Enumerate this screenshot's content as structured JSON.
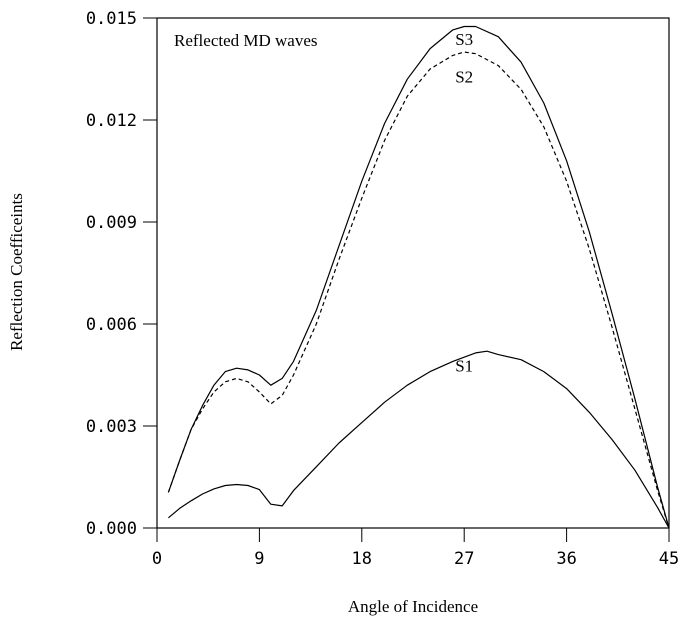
{
  "chart_data": {
    "type": "line",
    "annotation": "Reflected MD waves",
    "xlabel": "Angle of Incidence",
    "ylabel": "Reflection Coefficeints",
    "xlim": [
      0,
      45
    ],
    "ylim": [
      0,
      0.015
    ],
    "x_ticks": [
      "0",
      "9",
      "18",
      "27",
      "36",
      "45"
    ],
    "y_ticks": [
      "0.000",
      "0.003",
      "0.006",
      "0.009",
      "0.012",
      "0.015"
    ],
    "grid": false,
    "series": [
      {
        "name": "S3",
        "style": "solid",
        "points": [
          [
            1,
            0.00105
          ],
          [
            2,
            0.002
          ],
          [
            3,
            0.0029
          ],
          [
            4,
            0.0036
          ],
          [
            5,
            0.0042
          ],
          [
            6,
            0.0046
          ],
          [
            7,
            0.0047
          ],
          [
            8,
            0.00465
          ],
          [
            9,
            0.0045
          ],
          [
            10,
            0.0042
          ],
          [
            11,
            0.0044
          ],
          [
            12,
            0.0049
          ],
          [
            14,
            0.0064
          ],
          [
            16,
            0.0083
          ],
          [
            18,
            0.0102
          ],
          [
            20,
            0.0119
          ],
          [
            22,
            0.0132
          ],
          [
            24,
            0.0141
          ],
          [
            26,
            0.01465
          ],
          [
            27,
            0.01475
          ],
          [
            28,
            0.01475
          ],
          [
            30,
            0.01445
          ],
          [
            32,
            0.0137
          ],
          [
            34,
            0.0125
          ],
          [
            36,
            0.0108
          ],
          [
            38,
            0.0087
          ],
          [
            40,
            0.0063
          ],
          [
            42,
            0.0038
          ],
          [
            44,
            0.0012
          ],
          [
            45,
            0.0
          ]
        ]
      },
      {
        "name": "S2",
        "style": "dashed",
        "points": [
          [
            1,
            0.00105
          ],
          [
            2,
            0.002
          ],
          [
            3,
            0.0029
          ],
          [
            4,
            0.0035
          ],
          [
            5,
            0.004
          ],
          [
            6,
            0.0043
          ],
          [
            7,
            0.0044
          ],
          [
            8,
            0.0043
          ],
          [
            9,
            0.004
          ],
          [
            10,
            0.00365
          ],
          [
            11,
            0.0039
          ],
          [
            12,
            0.0045
          ],
          [
            14,
            0.006
          ],
          [
            16,
            0.0079
          ],
          [
            18,
            0.0097
          ],
          [
            20,
            0.0114
          ],
          [
            22,
            0.0127
          ],
          [
            24,
            0.0135
          ],
          [
            26,
            0.0139
          ],
          [
            27,
            0.014
          ],
          [
            28,
            0.01395
          ],
          [
            30,
            0.0136
          ],
          [
            32,
            0.0129
          ],
          [
            34,
            0.0118
          ],
          [
            36,
            0.0102
          ],
          [
            38,
            0.0082
          ],
          [
            40,
            0.0059
          ],
          [
            42,
            0.0035
          ],
          [
            44,
            0.0011
          ],
          [
            45,
            0.0
          ]
        ]
      },
      {
        "name": "S1",
        "style": "solid",
        "points": [
          [
            1,
            0.0003
          ],
          [
            2,
            0.00058
          ],
          [
            3,
            0.0008
          ],
          [
            4,
            0.001
          ],
          [
            5,
            0.00115
          ],
          [
            6,
            0.00125
          ],
          [
            7,
            0.00128
          ],
          [
            8,
            0.00125
          ],
          [
            9,
            0.00113
          ],
          [
            10,
            0.0007
          ],
          [
            11,
            0.00065
          ],
          [
            12,
            0.0011
          ],
          [
            14,
            0.0018
          ],
          [
            16,
            0.0025
          ],
          [
            18,
            0.0031
          ],
          [
            20,
            0.0037
          ],
          [
            22,
            0.0042
          ],
          [
            24,
            0.0046
          ],
          [
            26,
            0.0049
          ],
          [
            28,
            0.00515
          ],
          [
            29,
            0.0052
          ],
          [
            30,
            0.0051
          ],
          [
            32,
            0.00495
          ],
          [
            34,
            0.0046
          ],
          [
            36,
            0.0041
          ],
          [
            38,
            0.0034
          ],
          [
            40,
            0.0026
          ],
          [
            42,
            0.0017
          ],
          [
            44,
            0.0006
          ],
          [
            45,
            0.0
          ]
        ]
      }
    ],
    "series_labels": {
      "S3": [
        27,
        0.0142
      ],
      "S2": [
        27,
        0.0131
      ],
      "S1": [
        27,
        0.0046
      ]
    }
  }
}
